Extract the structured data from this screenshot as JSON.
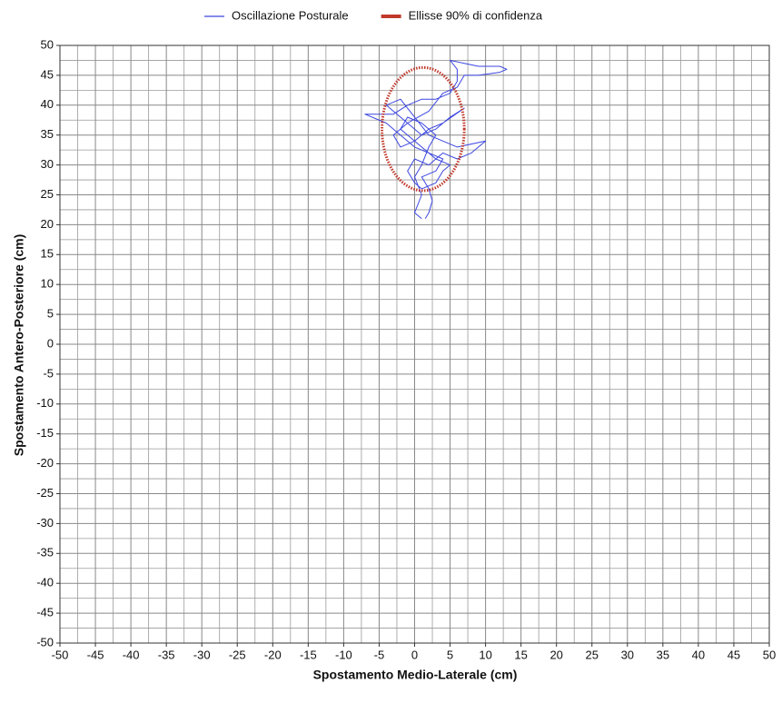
{
  "chart_data": {
    "type": "line",
    "xlabel": "Spostamento Medio-Laterale (cm)",
    "ylabel": "Spostamento Antero-Posteriore (cm)",
    "xlim": [
      -50,
      50
    ],
    "ylim": [
      -50,
      50
    ],
    "xticks": [
      -50,
      -45,
      -40,
      -35,
      -30,
      -25,
      -20,
      -15,
      -10,
      -5,
      0,
      5,
      10,
      15,
      20,
      25,
      30,
      35,
      40,
      45,
      50
    ],
    "yticks": [
      50,
      45,
      40,
      35,
      30,
      25,
      20,
      15,
      10,
      5,
      0,
      -5,
      -10,
      -15,
      -20,
      -25,
      -30,
      -35,
      -40,
      -45,
      -50
    ],
    "grid": true,
    "minor_grid": true,
    "legend": "top",
    "series": [
      {
        "name": "Oscillazione Posturale",
        "color": "#3c46e0",
        "x": [
          1.5,
          2,
          2.5,
          2,
          1,
          3,
          4,
          2,
          0,
          -2,
          -4,
          -7,
          -3,
          -1,
          1,
          3,
          5,
          6,
          6,
          5,
          7,
          9,
          12,
          13,
          12,
          9,
          7,
          6,
          4,
          2,
          -1,
          -3,
          -2,
          0,
          2,
          4,
          7,
          5,
          3,
          1,
          -1,
          -3,
          -4,
          -2,
          0,
          2,
          4,
          6,
          10,
          8,
          6,
          4,
          2,
          0,
          -1,
          0,
          1,
          3,
          4,
          5,
          3,
          1,
          -2,
          -1,
          1,
          3,
          2,
          1,
          0,
          1,
          0,
          1
        ],
        "values": [
          21,
          22,
          24,
          26,
          28,
          29,
          31,
          32,
          33,
          35,
          37,
          38.5,
          38.5,
          40,
          41,
          41,
          42,
          44,
          46,
          47.5,
          47,
          46.5,
          46.5,
          46,
          45.5,
          45,
          45,
          43,
          42,
          39,
          37,
          35,
          33,
          34,
          36,
          37,
          39.5,
          38,
          36,
          35,
          37,
          39,
          40,
          41,
          38,
          35,
          34,
          33,
          34,
          32,
          31,
          32,
          30,
          31,
          29,
          27,
          26,
          27,
          29,
          30,
          31,
          33,
          36,
          38,
          37,
          35,
          33,
          30,
          28,
          25,
          22,
          21
        ]
      },
      {
        "name": "Ellisse 90% di confidenza",
        "color": "#c0392b",
        "shape": "ellipse",
        "center_x": 1.2,
        "center_y": 36,
        "radius_x": 5.8,
        "radius_y": 10.3
      }
    ]
  }
}
